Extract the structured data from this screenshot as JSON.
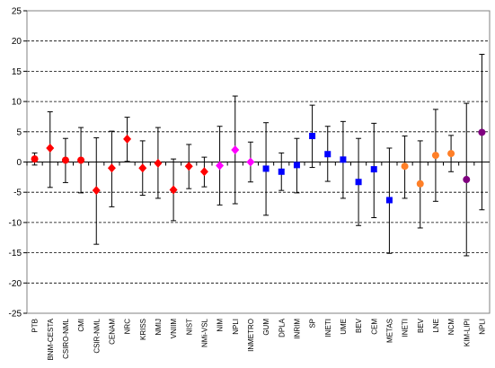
{
  "chart_data": {
    "type": "scatter",
    "title": "",
    "xlabel": "",
    "ylabel": "",
    "ylim": [
      -25,
      25
    ],
    "yticks": [
      -25,
      -20,
      -15,
      -10,
      -5,
      0,
      5,
      10,
      15,
      20,
      25
    ],
    "grid": "horizontal dashed",
    "error_bars": true,
    "colors": {
      "red": "#ff0000",
      "magenta": "#ff00ff",
      "blue": "#0000ff",
      "orange": "#ff7f27",
      "purple": "#800080"
    },
    "points": [
      {
        "label": "PTB",
        "value": 0.5,
        "err_lo": 1.0,
        "err_hi": 1.0,
        "marker": "circle",
        "color": "#ff0000"
      },
      {
        "label": "BNM-CESTA",
        "value": 2.3,
        "err_lo": 6.5,
        "err_hi": 6.0,
        "marker": "diamond",
        "color": "#ff0000"
      },
      {
        "label": "CSIRO-NML",
        "value": 0.3,
        "err_lo": 3.7,
        "err_hi": 3.6,
        "marker": "circle",
        "color": "#ff0000"
      },
      {
        "label": "CMI",
        "value": 0.3,
        "err_lo": 5.4,
        "err_hi": 5.4,
        "marker": "circle",
        "color": "#ff0000"
      },
      {
        "label": "CSIR-NML",
        "value": -4.7,
        "err_lo": 8.9,
        "err_hi": 8.7,
        "marker": "diamond",
        "color": "#ff0000"
      },
      {
        "label": "CENAM",
        "value": -1.0,
        "err_lo": 6.4,
        "err_hi": 6.1,
        "marker": "diamond",
        "color": "#ff0000"
      },
      {
        "label": "NRC",
        "value": 3.8,
        "err_lo": 3.7,
        "err_hi": 3.6,
        "marker": "diamond",
        "color": "#ff0000"
      },
      {
        "label": "KRISS",
        "value": -1.0,
        "err_lo": 4.5,
        "err_hi": 4.5,
        "marker": "diamond",
        "color": "#ff0000"
      },
      {
        "label": "NMIJ",
        "value": -0.2,
        "err_lo": 5.8,
        "err_hi": 5.9,
        "marker": "diamond",
        "color": "#ff0000"
      },
      {
        "label": "VNIIM",
        "value": -4.6,
        "err_lo": 5.1,
        "err_hi": 5.1,
        "marker": "diamond",
        "color": "#ff0000"
      },
      {
        "label": "NIST",
        "value": -0.7,
        "err_lo": 3.7,
        "err_hi": 3.6,
        "marker": "diamond",
        "color": "#ff0000"
      },
      {
        "label": "NMi-VSL",
        "value": -1.6,
        "err_lo": 2.5,
        "err_hi": 2.4,
        "marker": "diamond",
        "color": "#ff0000"
      },
      {
        "label": "NIM",
        "value": -0.6,
        "err_lo": 6.5,
        "err_hi": 6.5,
        "marker": "diamond",
        "color": "#ff00ff"
      },
      {
        "label": "NPLI",
        "value": 2.0,
        "err_lo": 8.9,
        "err_hi": 8.9,
        "marker": "diamond",
        "color": "#ff00ff"
      },
      {
        "label": "INMETRO",
        "value": 0.0,
        "err_lo": 3.3,
        "err_hi": 3.3,
        "marker": "diamond",
        "color": "#ff00ff"
      },
      {
        "label": "GUM",
        "value": -1.1,
        "err_lo": 7.7,
        "err_hi": 7.6,
        "marker": "square",
        "color": "#0000ff"
      },
      {
        "label": "DPLA",
        "value": -1.6,
        "err_lo": 3.1,
        "err_hi": 3.1,
        "marker": "square",
        "color": "#0000ff"
      },
      {
        "label": "INRIM",
        "value": -0.5,
        "err_lo": 4.6,
        "err_hi": 4.4,
        "marker": "square",
        "color": "#0000ff"
      },
      {
        "label": "SP",
        "value": 4.3,
        "err_lo": 5.2,
        "err_hi": 5.1,
        "marker": "square",
        "color": "#0000ff"
      },
      {
        "label": "INETI",
        "value": 1.3,
        "err_lo": 4.5,
        "err_hi": 4.6,
        "marker": "square",
        "color": "#0000ff"
      },
      {
        "label": "UME",
        "value": 0.4,
        "err_lo": 6.4,
        "err_hi": 6.3,
        "marker": "square",
        "color": "#0000ff"
      },
      {
        "label": "BEV",
        "value": -3.3,
        "err_lo": 7.2,
        "err_hi": 7.2,
        "marker": "square",
        "color": "#0000ff"
      },
      {
        "label": "CEM",
        "value": -1.2,
        "err_lo": 8.0,
        "err_hi": 7.6,
        "marker": "square",
        "color": "#0000ff"
      },
      {
        "label": "METAS",
        "value": -6.3,
        "err_lo": 8.8,
        "err_hi": 8.6,
        "marker": "square",
        "color": "#0000ff"
      },
      {
        "label": "INETI",
        "value": -0.7,
        "err_lo": 5.3,
        "err_hi": 5.0,
        "marker": "circle",
        "color": "#ff7f27"
      },
      {
        "label": "BEV",
        "value": -3.6,
        "err_lo": 7.3,
        "err_hi": 7.1,
        "marker": "circle",
        "color": "#ff7f27"
      },
      {
        "label": "LNE",
        "value": 1.1,
        "err_lo": 7.6,
        "err_hi": 7.6,
        "marker": "circle",
        "color": "#ff7f27"
      },
      {
        "label": "NCM",
        "value": 1.4,
        "err_lo": 3.0,
        "err_hi": 3.0,
        "marker": "circle",
        "color": "#ff7f27"
      },
      {
        "label": "KIM-LIPI",
        "value": -2.9,
        "err_lo": 12.6,
        "err_hi": 12.6,
        "marker": "circle",
        "color": "#800080"
      },
      {
        "label": "NPLI",
        "value": 4.9,
        "err_lo": 12.8,
        "err_hi": 12.9,
        "marker": "circle",
        "color": "#800080"
      }
    ]
  }
}
